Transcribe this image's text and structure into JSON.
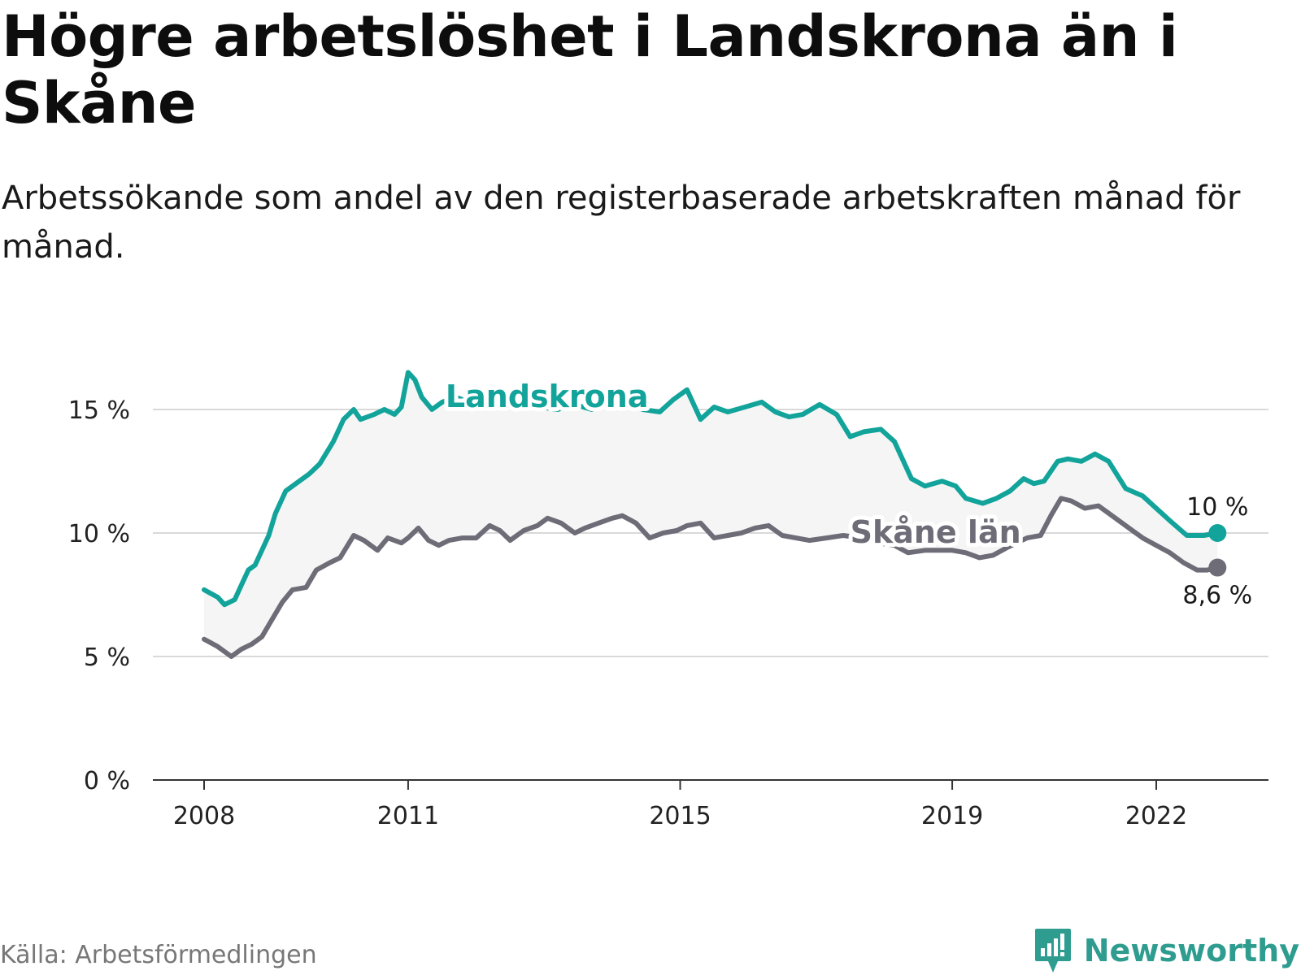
{
  "header": {
    "title": "Högre arbetslöshet i Landskrona än i Skåne",
    "subtitle": "Arbetssökande som andel av den registerbaserade arbetskraften månad för månad."
  },
  "footer": {
    "source": "Källa: Arbetsförmedlingen",
    "brand": "Newsworthy"
  },
  "colors": {
    "landskrona": "#12a39a",
    "skane": "#6e6c77",
    "band": "#f5f5f5",
    "grid": "#d9d9d9",
    "axis": "#333333",
    "brand": "#2f9c90"
  },
  "chart_data": {
    "type": "line",
    "title": "Högre arbetslöshet i Landskrona än i Skåne",
    "subtitle": "Arbetssökande som andel av den registerbaserade arbetskraften månad för månad.",
    "xlabel": "",
    "ylabel": "",
    "xlim": [
      2008.0,
      2023.0
    ],
    "ylim": [
      0,
      20
    ],
    "yticks": [
      0,
      5,
      10,
      15
    ],
    "ytick_labels": [
      "0 %",
      "5 %",
      "10 %",
      "15 %"
    ],
    "xticks": [
      2008,
      2011,
      2015,
      2019,
      2022
    ],
    "xtick_labels": [
      "2008",
      "2011",
      "2015",
      "2019",
      "2022"
    ],
    "grid": true,
    "shaded_between_series": true,
    "series": [
      {
        "name": "Landskrona",
        "label": "Landskrona",
        "end_label": "10 %",
        "x": [
          2008.0,
          2008.2,
          2008.3,
          2008.45,
          2008.55,
          2008.65,
          2008.75,
          2008.95,
          2009.05,
          2009.2,
          2009.35,
          2009.55,
          2009.7,
          2009.9,
          2010.05,
          2010.2,
          2010.3,
          2010.5,
          2010.65,
          2010.8,
          2010.9,
          2011.0,
          2011.1,
          2011.2,
          2011.35,
          2011.5,
          2011.7,
          2011.9,
          2012.1,
          2012.3,
          2012.5,
          2012.7,
          2012.95,
          2013.2,
          2013.45,
          2013.7,
          2013.9,
          2014.2,
          2014.45,
          2014.7,
          2014.9,
          2015.1,
          2015.3,
          2015.5,
          2015.7,
          2015.95,
          2016.2,
          2016.4,
          2016.6,
          2016.8,
          2017.05,
          2017.3,
          2017.5,
          2017.7,
          2017.95,
          2018.15,
          2018.4,
          2018.6,
          2018.85,
          2019.05,
          2019.2,
          2019.45,
          2019.65,
          2019.85,
          2020.05,
          2020.2,
          2020.35,
          2020.55,
          2020.7,
          2020.9,
          2021.1,
          2021.3,
          2021.55,
          2021.8,
          2022.0,
          2022.2,
          2022.45,
          2022.7,
          2022.9
        ],
        "values": [
          7.7,
          7.4,
          7.1,
          7.3,
          7.9,
          8.5,
          8.7,
          9.9,
          10.8,
          11.7,
          12.0,
          12.4,
          12.8,
          13.7,
          14.6,
          15.0,
          14.6,
          14.8,
          15.0,
          14.8,
          15.1,
          16.5,
          16.2,
          15.5,
          15.0,
          15.3,
          15.5,
          15.3,
          15.2,
          15.2,
          15.4,
          15.3,
          15.1,
          15.0,
          15.2,
          15.0,
          15.2,
          15.3,
          15.0,
          14.9,
          15.4,
          15.8,
          14.6,
          15.1,
          14.9,
          15.1,
          15.3,
          14.9,
          14.7,
          14.8,
          15.2,
          14.8,
          13.9,
          14.1,
          14.2,
          13.7,
          12.2,
          11.9,
          12.1,
          11.9,
          11.4,
          11.2,
          11.4,
          11.7,
          12.2,
          12.0,
          12.1,
          12.9,
          13.0,
          12.9,
          13.2,
          12.9,
          11.8,
          11.5,
          11.0,
          10.5,
          9.9,
          9.9,
          10.0
        ]
      },
      {
        "name": "Skåne län",
        "label": "Skåne län",
        "end_label": "8,6 %",
        "x": [
          2008.0,
          2008.2,
          2008.4,
          2008.55,
          2008.7,
          2008.85,
          2009.0,
          2009.15,
          2009.3,
          2009.5,
          2009.65,
          2009.85,
          2010.0,
          2010.2,
          2010.35,
          2010.55,
          2010.7,
          2010.9,
          2011.0,
          2011.15,
          2011.3,
          2011.45,
          2011.6,
          2011.8,
          2012.0,
          2012.2,
          2012.35,
          2012.5,
          2012.7,
          2012.9,
          2013.05,
          2013.25,
          2013.45,
          2013.6,
          2013.8,
          2014.0,
          2014.15,
          2014.35,
          2014.55,
          2014.75,
          2014.95,
          2015.1,
          2015.3,
          2015.5,
          2015.7,
          2015.9,
          2016.1,
          2016.3,
          2016.5,
          2016.7,
          2016.9,
          2017.15,
          2017.4,
          2017.65,
          2017.9,
          2018.15,
          2018.35,
          2018.6,
          2018.8,
          2019.0,
          2019.2,
          2019.4,
          2019.6,
          2019.8,
          2019.95,
          2020.1,
          2020.3,
          2020.45,
          2020.6,
          2020.75,
          2020.95,
          2021.15,
          2021.35,
          2021.6,
          2021.8,
          2022.0,
          2022.2,
          2022.4,
          2022.6,
          2022.75,
          2022.9
        ],
        "values": [
          5.7,
          5.4,
          5.0,
          5.3,
          5.5,
          5.8,
          6.5,
          7.2,
          7.7,
          7.8,
          8.5,
          8.8,
          9.0,
          9.9,
          9.7,
          9.3,
          9.8,
          9.6,
          9.8,
          10.2,
          9.7,
          9.5,
          9.7,
          9.8,
          9.8,
          10.3,
          10.1,
          9.7,
          10.1,
          10.3,
          10.6,
          10.4,
          10.0,
          10.2,
          10.4,
          10.6,
          10.7,
          10.4,
          9.8,
          10.0,
          10.1,
          10.3,
          10.4,
          9.8,
          9.9,
          10.0,
          10.2,
          10.3,
          9.9,
          9.8,
          9.7,
          9.8,
          9.9,
          9.8,
          9.6,
          9.5,
          9.2,
          9.3,
          9.3,
          9.3,
          9.2,
          9.0,
          9.1,
          9.4,
          9.6,
          9.8,
          9.9,
          10.7,
          11.4,
          11.3,
          11.0,
          11.1,
          10.7,
          10.2,
          9.8,
          9.5,
          9.2,
          8.8,
          8.5,
          8.5,
          8.6
        ]
      }
    ]
  }
}
